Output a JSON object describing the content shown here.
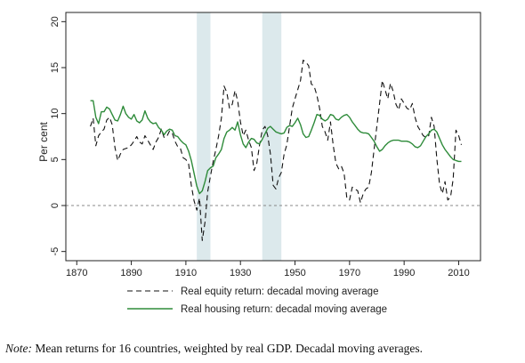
{
  "note": {
    "prefix": "Note:",
    "text": " Mean returns for 16 countries, weighted by real GDP. Decadal moving averages."
  },
  "chart_data": {
    "type": "line",
    "title": "",
    "xlabel": "",
    "ylabel": "Per cent",
    "xlim": [
      1866,
      2018
    ],
    "ylim": [
      -6,
      21
    ],
    "xticks": [
      1870,
      1890,
      1910,
      1930,
      1950,
      1970,
      1990,
      2010
    ],
    "yticks": [
      -5,
      0,
      5,
      10,
      15,
      20
    ],
    "zero_line": {
      "value": 0,
      "style": "dashed",
      "color": "#888888"
    },
    "shaded_periods": [
      {
        "start": 1914,
        "end": 1919,
        "color": "#dce9ec"
      },
      {
        "start": 1938,
        "end": 1945,
        "color": "#dce9ec"
      }
    ],
    "legend_placement": "bottom",
    "grid": false,
    "series": [
      {
        "name": "Real equity return: decadal moving average",
        "color": "#111111",
        "dash": "6,4",
        "points": [
          [
            1875,
            8.6
          ],
          [
            1876,
            9.5
          ],
          [
            1877,
            6.5
          ],
          [
            1878,
            7.6
          ],
          [
            1879,
            8.0
          ],
          [
            1880,
            8.3
          ],
          [
            1881,
            9.3
          ],
          [
            1882,
            9.6
          ],
          [
            1883,
            8.8
          ],
          [
            1884,
            6.3
          ],
          [
            1885,
            4.9
          ],
          [
            1886,
            5.6
          ],
          [
            1887,
            6.1
          ],
          [
            1888,
            6.2
          ],
          [
            1889,
            6.3
          ],
          [
            1890,
            6.6
          ],
          [
            1891,
            7.0
          ],
          [
            1892,
            7.5
          ],
          [
            1893,
            6.9
          ],
          [
            1894,
            6.7
          ],
          [
            1895,
            7.6
          ],
          [
            1896,
            7.1
          ],
          [
            1897,
            6.6
          ],
          [
            1898,
            6.1
          ],
          [
            1899,
            6.9
          ],
          [
            1900,
            7.4
          ],
          [
            1901,
            8.3
          ],
          [
            1902,
            7.4
          ],
          [
            1903,
            7.5
          ],
          [
            1904,
            8.1
          ],
          [
            1905,
            7.9
          ],
          [
            1906,
            7.0
          ],
          [
            1907,
            6.4
          ],
          [
            1908,
            6.2
          ],
          [
            1909,
            5.2
          ],
          [
            1910,
            5.0
          ],
          [
            1911,
            4.5
          ],
          [
            1912,
            2.2
          ],
          [
            1913,
            0.5
          ],
          [
            1914,
            -0.5
          ],
          [
            1915,
            0.8
          ],
          [
            1916,
            -3.8
          ],
          [
            1917,
            -1.8
          ],
          [
            1918,
            1.5
          ],
          [
            1919,
            3.2
          ],
          [
            1920,
            4.8
          ],
          [
            1921,
            6.1
          ],
          [
            1922,
            7.6
          ],
          [
            1923,
            9.5
          ],
          [
            1924,
            13.0
          ],
          [
            1925,
            12.3
          ],
          [
            1926,
            10.6
          ],
          [
            1927,
            11.0
          ],
          [
            1928,
            12.5
          ],
          [
            1929,
            11.4
          ],
          [
            1930,
            9.1
          ],
          [
            1931,
            7.6
          ],
          [
            1932,
            8.2
          ],
          [
            1933,
            7.1
          ],
          [
            1934,
            6.3
          ],
          [
            1935,
            3.8
          ],
          [
            1936,
            4.6
          ],
          [
            1937,
            6.6
          ],
          [
            1938,
            8.2
          ],
          [
            1939,
            8.6
          ],
          [
            1940,
            7.6
          ],
          [
            1941,
            5.6
          ],
          [
            1942,
            2.2
          ],
          [
            1943,
            1.8
          ],
          [
            1944,
            3.0
          ],
          [
            1945,
            3.6
          ],
          [
            1946,
            5.6
          ],
          [
            1947,
            6.6
          ],
          [
            1948,
            8.6
          ],
          [
            1949,
            10.6
          ],
          [
            1950,
            11.6
          ],
          [
            1951,
            12.6
          ],
          [
            1952,
            13.6
          ],
          [
            1953,
            15.8
          ],
          [
            1954,
            15.6
          ],
          [
            1955,
            15.2
          ],
          [
            1956,
            13.2
          ],
          [
            1957,
            13.0
          ],
          [
            1958,
            12.0
          ],
          [
            1959,
            10.6
          ],
          [
            1960,
            8.6
          ],
          [
            1961,
            8.0
          ],
          [
            1962,
            7.1
          ],
          [
            1963,
            9.1
          ],
          [
            1964,
            6.6
          ],
          [
            1965,
            4.6
          ],
          [
            1966,
            4.0
          ],
          [
            1967,
            4.3
          ],
          [
            1968,
            3.5
          ],
          [
            1969,
            0.8
          ],
          [
            1970,
            0.6
          ],
          [
            1971,
            2.0
          ],
          [
            1972,
            1.8
          ],
          [
            1973,
            1.6
          ],
          [
            1974,
            0.3
          ],
          [
            1975,
            1.3
          ],
          [
            1976,
            1.8
          ],
          [
            1977,
            2.0
          ],
          [
            1978,
            3.6
          ],
          [
            1979,
            6.1
          ],
          [
            1980,
            8.6
          ],
          [
            1981,
            11.1
          ],
          [
            1982,
            13.6
          ],
          [
            1983,
            12.6
          ],
          [
            1984,
            11.6
          ],
          [
            1985,
            13.3
          ],
          [
            1986,
            12.4
          ],
          [
            1987,
            11.0
          ],
          [
            1988,
            10.4
          ],
          [
            1989,
            11.6
          ],
          [
            1990,
            11.1
          ],
          [
            1991,
            10.6
          ],
          [
            1992,
            10.4
          ],
          [
            1993,
            11.1
          ],
          [
            1994,
            9.6
          ],
          [
            1995,
            8.6
          ],
          [
            1996,
            8.1
          ],
          [
            1997,
            7.6
          ],
          [
            1998,
            7.4
          ],
          [
            1999,
            7.6
          ],
          [
            2000,
            9.6
          ],
          [
            2001,
            8.6
          ],
          [
            2002,
            5.1
          ],
          [
            2003,
            2.3
          ],
          [
            2004,
            1.3
          ],
          [
            2005,
            2.6
          ],
          [
            2006,
            0.6
          ],
          [
            2007,
            0.9
          ],
          [
            2008,
            2.9
          ],
          [
            2009,
            8.2
          ],
          [
            2010,
            7.6
          ],
          [
            2011,
            6.6
          ]
        ]
      },
      {
        "name": "Real housing return: decadal moving average",
        "color": "#2e8b3a",
        "dash": "",
        "points": [
          [
            1875,
            11.4
          ],
          [
            1876,
            11.4
          ],
          [
            1877,
            9.6
          ],
          [
            1878,
            8.9
          ],
          [
            1879,
            10.2
          ],
          [
            1880,
            10.2
          ],
          [
            1881,
            10.7
          ],
          [
            1882,
            10.5
          ],
          [
            1883,
            9.9
          ],
          [
            1884,
            9.3
          ],
          [
            1885,
            9.2
          ],
          [
            1886,
            9.9
          ],
          [
            1887,
            10.8
          ],
          [
            1888,
            10.0
          ],
          [
            1889,
            9.6
          ],
          [
            1890,
            9.4
          ],
          [
            1891,
            9.9
          ],
          [
            1892,
            9.2
          ],
          [
            1893,
            9.0
          ],
          [
            1894,
            9.3
          ],
          [
            1895,
            10.3
          ],
          [
            1896,
            9.5
          ],
          [
            1897,
            9.1
          ],
          [
            1898,
            8.9
          ],
          [
            1899,
            9.0
          ],
          [
            1900,
            8.5
          ],
          [
            1901,
            8.2
          ],
          [
            1902,
            7.7
          ],
          [
            1903,
            8.1
          ],
          [
            1904,
            8.3
          ],
          [
            1905,
            8.2
          ],
          [
            1906,
            7.6
          ],
          [
            1907,
            7.5
          ],
          [
            1908,
            7.1
          ],
          [
            1909,
            6.8
          ],
          [
            1910,
            6.6
          ],
          [
            1911,
            5.9
          ],
          [
            1912,
            4.9
          ],
          [
            1913,
            3.5
          ],
          [
            1914,
            2.1
          ],
          [
            1915,
            1.3
          ],
          [
            1916,
            1.6
          ],
          [
            1917,
            2.6
          ],
          [
            1918,
            3.8
          ],
          [
            1919,
            4.1
          ],
          [
            1920,
            4.3
          ],
          [
            1921,
            5.2
          ],
          [
            1922,
            5.6
          ],
          [
            1923,
            6.1
          ],
          [
            1924,
            7.3
          ],
          [
            1925,
            8.0
          ],
          [
            1926,
            8.2
          ],
          [
            1927,
            8.5
          ],
          [
            1928,
            8.2
          ],
          [
            1929,
            9.1
          ],
          [
            1930,
            7.7
          ],
          [
            1931,
            6.7
          ],
          [
            1932,
            6.3
          ],
          [
            1933,
            6.9
          ],
          [
            1934,
            7.3
          ],
          [
            1935,
            7.2
          ],
          [
            1936,
            6.8
          ],
          [
            1937,
            6.7
          ],
          [
            1938,
            7.2
          ],
          [
            1939,
            7.8
          ],
          [
            1940,
            8.4
          ],
          [
            1941,
            8.6
          ],
          [
            1942,
            8.3
          ],
          [
            1943,
            8.0
          ],
          [
            1944,
            7.9
          ],
          [
            1945,
            7.8
          ],
          [
            1946,
            7.9
          ],
          [
            1947,
            8.5
          ],
          [
            1948,
            8.7
          ],
          [
            1949,
            8.6
          ],
          [
            1950,
            9.0
          ],
          [
            1951,
            9.5
          ],
          [
            1952,
            8.8
          ],
          [
            1953,
            7.8
          ],
          [
            1954,
            7.4
          ],
          [
            1955,
            7.5
          ],
          [
            1956,
            8.2
          ],
          [
            1957,
            9.0
          ],
          [
            1958,
            9.9
          ],
          [
            1959,
            9.8
          ],
          [
            1960,
            9.4
          ],
          [
            1961,
            9.2
          ],
          [
            1962,
            9.4
          ],
          [
            1963,
            9.9
          ],
          [
            1964,
            9.8
          ],
          [
            1965,
            9.4
          ],
          [
            1966,
            9.3
          ],
          [
            1967,
            9.6
          ],
          [
            1968,
            9.8
          ],
          [
            1969,
            9.9
          ],
          [
            1970,
            9.6
          ],
          [
            1971,
            9.1
          ],
          [
            1972,
            8.7
          ],
          [
            1973,
            8.3
          ],
          [
            1974,
            8.0
          ],
          [
            1975,
            7.9
          ],
          [
            1976,
            7.9
          ],
          [
            1977,
            7.8
          ],
          [
            1978,
            7.4
          ],
          [
            1979,
            7.0
          ],
          [
            1980,
            6.4
          ],
          [
            1981,
            5.9
          ],
          [
            1982,
            6.1
          ],
          [
            1983,
            6.5
          ],
          [
            1984,
            6.8
          ],
          [
            1985,
            7.0
          ],
          [
            1986,
            7.1
          ],
          [
            1987,
            7.1
          ],
          [
            1988,
            7.1
          ],
          [
            1989,
            7.0
          ],
          [
            1990,
            7.0
          ],
          [
            1991,
            7.0
          ],
          [
            1992,
            6.9
          ],
          [
            1993,
            6.7
          ],
          [
            1994,
            6.4
          ],
          [
            1995,
            6.3
          ],
          [
            1996,
            6.5
          ],
          [
            1997,
            7.0
          ],
          [
            1998,
            7.5
          ],
          [
            1999,
            7.8
          ],
          [
            2000,
            8.2
          ],
          [
            2001,
            8.3
          ],
          [
            2002,
            8.0
          ],
          [
            2003,
            7.3
          ],
          [
            2004,
            6.6
          ],
          [
            2005,
            6.1
          ],
          [
            2006,
            5.7
          ],
          [
            2007,
            5.3
          ],
          [
            2008,
            5.0
          ],
          [
            2009,
            4.9
          ],
          [
            2010,
            4.8
          ],
          [
            2011,
            4.8
          ]
        ]
      }
    ]
  }
}
